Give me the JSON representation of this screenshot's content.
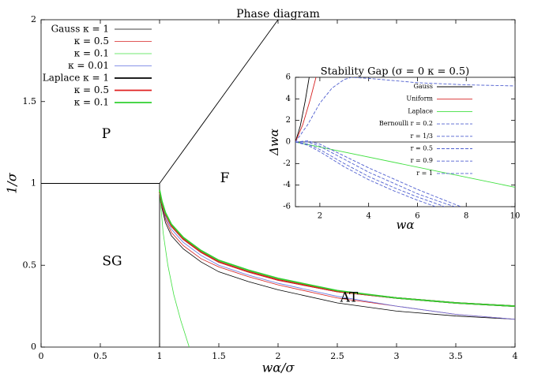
{
  "chart_data": [
    {
      "type": "line",
      "title": "Phase diagram",
      "xlabel": "wα/σ",
      "ylabel": "1/σ",
      "xlim": [
        0,
        4
      ],
      "ylim": [
        0,
        2
      ],
      "xticks": [
        0,
        0.5,
        1,
        1.5,
        2,
        2.5,
        3,
        3.5,
        4
      ],
      "yticks": [
        0,
        0.5,
        1,
        1.5,
        2
      ],
      "annotations": [
        "P",
        "F",
        "SG",
        "AT"
      ],
      "boundaries": [
        {
          "color": "#000000",
          "x": [
            0,
            1
          ],
          "values": [
            1,
            1
          ]
        },
        {
          "color": "#000000",
          "x": [
            1,
            1
          ],
          "values": [
            0,
            1
          ]
        },
        {
          "color": "#000000",
          "x": [
            1,
            2
          ],
          "values": [
            1,
            2
          ]
        }
      ],
      "series": [
        {
          "name": "Gauss κ = 1",
          "color": "#000000",
          "width": 0.8,
          "x": [
            1,
            1.02,
            1.05,
            1.1,
            1.2,
            1.35,
            1.5,
            1.75,
            2,
            2.5,
            3,
            3.5,
            4
          ],
          "values": [
            0.95,
            0.85,
            0.76,
            0.68,
            0.6,
            0.52,
            0.46,
            0.4,
            0.35,
            0.27,
            0.22,
            0.19,
            0.17
          ]
        },
        {
          "name": "κ = 0.5",
          "color": "#d62020",
          "width": 0.8,
          "x": [
            1,
            1.02,
            1.05,
            1.1,
            1.2,
            1.35,
            1.5,
            1.75,
            2,
            2.5,
            3,
            3.5,
            4
          ],
          "values": [
            0.95,
            0.86,
            0.78,
            0.7,
            0.62,
            0.54,
            0.49,
            0.43,
            0.38,
            0.3,
            0.25,
            0.2,
            0.17
          ]
        },
        {
          "name": "κ = 0.1",
          "color": "#40e040",
          "width": 0.8,
          "x": [
            1,
            1.03,
            1.07,
            1.12,
            1.18,
            1.25
          ],
          "values": [
            0.95,
            0.7,
            0.5,
            0.32,
            0.16,
            0
          ]
        },
        {
          "name": "κ = 0.01",
          "color": "#6070e0",
          "width": 0.8,
          "x": [
            1,
            1.02,
            1.05,
            1.1,
            1.2,
            1.35,
            1.5,
            1.75,
            2,
            2.5,
            3,
            3.5,
            4
          ],
          "values": [
            0.95,
            0.87,
            0.79,
            0.72,
            0.64,
            0.56,
            0.5,
            0.44,
            0.39,
            0.31,
            0.25,
            0.2,
            0.17
          ]
        },
        {
          "name": "Laplace κ = 1",
          "color": "#000000",
          "width": 1.8,
          "x": [
            1,
            1.02,
            1.05,
            1.1,
            1.2,
            1.35,
            1.5,
            1.75,
            2,
            2.5,
            3,
            3.5,
            4
          ],
          "values": [
            0.95,
            0.88,
            0.81,
            0.74,
            0.66,
            0.58,
            0.52,
            0.46,
            0.41,
            0.34,
            0.3,
            0.27,
            0.25
          ]
        },
        {
          "name": "κ = 0.5",
          "color": "#e02020",
          "width": 1.8,
          "x": [
            1,
            1.02,
            1.05,
            1.1,
            1.2,
            1.35,
            1.5,
            1.75,
            2,
            2.5,
            3,
            3.5,
            4
          ],
          "values": [
            0.95,
            0.88,
            0.81,
            0.74,
            0.66,
            0.58,
            0.52,
            0.46,
            0.41,
            0.34,
            0.3,
            0.27,
            0.25
          ]
        },
        {
          "name": "κ = 0.1",
          "color": "#30d030",
          "width": 1.8,
          "x": [
            1,
            1.02,
            1.05,
            1.1,
            1.2,
            1.35,
            1.5,
            1.75,
            2,
            2.5,
            3,
            3.5,
            4
          ],
          "values": [
            0.96,
            0.89,
            0.82,
            0.75,
            0.67,
            0.59,
            0.53,
            0.47,
            0.42,
            0.345,
            0.3,
            0.27,
            0.25
          ]
        }
      ]
    },
    {
      "type": "line",
      "title": "Stability Gap (σ = 0 κ = 0.5)",
      "xlabel": "wα",
      "ylabel": "Δwα",
      "xlim": [
        1,
        10
      ],
      "ylim": [
        -6,
        6
      ],
      "xticks": [
        2,
        4,
        6,
        8,
        10
      ],
      "yticks": [
        -6,
        -4,
        -2,
        0,
        2,
        4,
        6
      ],
      "series": [
        {
          "name": "Gauss",
          "color": "#000000",
          "dash": false,
          "x": [
            1,
            1.2,
            1.4,
            1.6
          ],
          "values": [
            0,
            1.5,
            3.8,
            6.5
          ]
        },
        {
          "name": "Uniform",
          "color": "#d62020",
          "dash": false,
          "x": [
            1,
            1.3,
            1.6,
            1.9
          ],
          "values": [
            0,
            1.6,
            3.9,
            6.5
          ]
        },
        {
          "name": "Laplace",
          "color": "#40e040",
          "dash": false,
          "x": [
            1,
            10
          ],
          "values": [
            0,
            -4.2
          ]
        },
        {
          "name": "Bernoulli r = 0.2",
          "color": "#5060d0",
          "dash": true,
          "x": [
            1,
            1.5,
            2,
            2.5,
            3,
            3.3,
            4,
            5,
            6,
            7,
            8,
            9,
            10
          ],
          "values": [
            0,
            1.6,
            3.6,
            5,
            5.8,
            6,
            5.9,
            5.7,
            5.5,
            5.4,
            5.3,
            5.25,
            5.2
          ]
        },
        {
          "name": "r = 1/3",
          "color": "#5060d0",
          "dash": true,
          "x": [
            1,
            1.5,
            2,
            3,
            4,
            5,
            6,
            7,
            8
          ],
          "values": [
            0,
            0.1,
            -0.2,
            -1.3,
            -2.4,
            -3.4,
            -4.4,
            -5.3,
            -6.2
          ]
        },
        {
          "name": "r = 0.5",
          "color": "#5060d0",
          "dash": true,
          "x": [
            1,
            1.5,
            2,
            3,
            4,
            5,
            6,
            7,
            7.8
          ],
          "values": [
            0,
            0,
            -0.4,
            -1.6,
            -2.8,
            -3.8,
            -4.8,
            -5.6,
            -6.2
          ]
        },
        {
          "name": "r = 0.9",
          "color": "#5060d0",
          "dash": true,
          "x": [
            1,
            1.5,
            2,
            3,
            4,
            5,
            6,
            7,
            7.3
          ],
          "values": [
            0,
            -0.2,
            -0.7,
            -2,
            -3.2,
            -4.2,
            -5.1,
            -5.9,
            -6.2
          ]
        },
        {
          "name": "r = 1",
          "color": "#5060d0",
          "dash": true,
          "x": [
            1,
            1.5,
            2,
            3,
            4,
            5,
            6,
            7
          ],
          "values": [
            0,
            -0.3,
            -0.9,
            -2.3,
            -3.5,
            -4.5,
            -5.4,
            -6.2
          ]
        }
      ]
    }
  ]
}
